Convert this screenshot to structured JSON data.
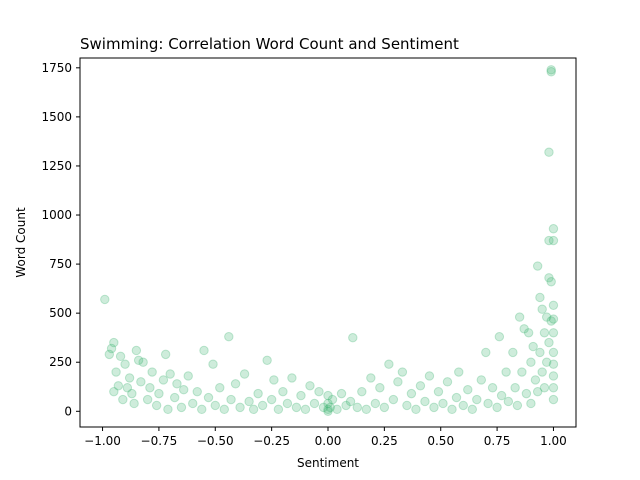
{
  "chart_data": {
    "type": "scatter",
    "title": "Swimming: Correlation Word Count and Sentiment",
    "xlabel": "Sentiment",
    "ylabel": "Word Count",
    "xlim": [
      -1.1,
      1.1
    ],
    "ylim": [
      -80,
      1800
    ],
    "xticks": [
      -1.0,
      -0.75,
      -0.5,
      -0.25,
      0.0,
      0.25,
      0.5,
      0.75,
      1.0
    ],
    "xtick_labels": [
      "−1.00",
      "−0.75",
      "−0.50",
      "−0.25",
      "0.00",
      "0.25",
      "0.50",
      "0.75",
      "1.00"
    ],
    "yticks": [
      0,
      250,
      500,
      750,
      1000,
      1250,
      1500,
      1750
    ],
    "ytick_labels": [
      "0",
      "250",
      "500",
      "750",
      "1000",
      "1250",
      "1500",
      "1750"
    ],
    "grid": false,
    "legend": "none",
    "marker_color": "#3cb371",
    "marker_alpha": 0.25,
    "series": [
      {
        "points": [
          [
            -0.99,
            570
          ],
          [
            -0.97,
            290
          ],
          [
            -0.96,
            320
          ],
          [
            -0.95,
            350
          ],
          [
            -0.95,
            100
          ],
          [
            -0.94,
            200
          ],
          [
            -0.93,
            130
          ],
          [
            -0.92,
            280
          ],
          [
            -0.91,
            60
          ],
          [
            -0.9,
            240
          ],
          [
            -0.89,
            120
          ],
          [
            -0.88,
            170
          ],
          [
            -0.87,
            90
          ],
          [
            -0.86,
            40
          ],
          [
            -0.85,
            310
          ],
          [
            -0.84,
            260
          ],
          [
            -0.83,
            150
          ],
          [
            -0.82,
            250
          ],
          [
            -0.8,
            60
          ],
          [
            -0.79,
            120
          ],
          [
            -0.78,
            200
          ],
          [
            -0.76,
            30
          ],
          [
            -0.75,
            90
          ],
          [
            -0.73,
            160
          ],
          [
            -0.72,
            290
          ],
          [
            -0.71,
            10
          ],
          [
            -0.7,
            190
          ],
          [
            -0.68,
            70
          ],
          [
            -0.67,
            140
          ],
          [
            -0.65,
            20
          ],
          [
            -0.64,
            110
          ],
          [
            -0.62,
            180
          ],
          [
            -0.6,
            40
          ],
          [
            -0.58,
            100
          ],
          [
            -0.56,
            10
          ],
          [
            -0.55,
            310
          ],
          [
            -0.53,
            70
          ],
          [
            -0.51,
            240
          ],
          [
            -0.5,
            30
          ],
          [
            -0.48,
            120
          ],
          [
            -0.46,
            10
          ],
          [
            -0.44,
            380
          ],
          [
            -0.43,
            60
          ],
          [
            -0.41,
            140
          ],
          [
            -0.39,
            20
          ],
          [
            -0.37,
            190
          ],
          [
            -0.35,
            50
          ],
          [
            -0.33,
            10
          ],
          [
            -0.31,
            90
          ],
          [
            -0.29,
            30
          ],
          [
            -0.27,
            260
          ],
          [
            -0.25,
            60
          ],
          [
            -0.24,
            160
          ],
          [
            -0.22,
            10
          ],
          [
            -0.2,
            100
          ],
          [
            -0.18,
            40
          ],
          [
            -0.16,
            170
          ],
          [
            -0.14,
            20
          ],
          [
            -0.12,
            80
          ],
          [
            -0.1,
            10
          ],
          [
            -0.08,
            130
          ],
          [
            -0.06,
            40
          ],
          [
            -0.04,
            100
          ],
          [
            -0.02,
            20
          ],
          [
            0.0,
            0
          ],
          [
            0.0,
            10
          ],
          [
            0.0,
            40
          ],
          [
            0.0,
            80
          ],
          [
            0.01,
            20
          ],
          [
            0.02,
            60
          ],
          [
            0.04,
            10
          ],
          [
            0.06,
            90
          ],
          [
            0.08,
            30
          ],
          [
            0.1,
            50
          ],
          [
            0.11,
            375
          ],
          [
            0.13,
            20
          ],
          [
            0.15,
            100
          ],
          [
            0.17,
            10
          ],
          [
            0.19,
            170
          ],
          [
            0.21,
            40
          ],
          [
            0.23,
            120
          ],
          [
            0.25,
            20
          ],
          [
            0.27,
            240
          ],
          [
            0.29,
            60
          ],
          [
            0.31,
            150
          ],
          [
            0.33,
            200
          ],
          [
            0.35,
            30
          ],
          [
            0.37,
            90
          ],
          [
            0.39,
            10
          ],
          [
            0.41,
            130
          ],
          [
            0.43,
            50
          ],
          [
            0.45,
            180
          ],
          [
            0.47,
            20
          ],
          [
            0.49,
            100
          ],
          [
            0.51,
            40
          ],
          [
            0.53,
            150
          ],
          [
            0.55,
            10
          ],
          [
            0.57,
            70
          ],
          [
            0.58,
            200
          ],
          [
            0.6,
            30
          ],
          [
            0.62,
            110
          ],
          [
            0.64,
            10
          ],
          [
            0.66,
            60
          ],
          [
            0.68,
            160
          ],
          [
            0.7,
            300
          ],
          [
            0.71,
            40
          ],
          [
            0.73,
            120
          ],
          [
            0.75,
            20
          ],
          [
            0.76,
            380
          ],
          [
            0.77,
            80
          ],
          [
            0.79,
            200
          ],
          [
            0.8,
            50
          ],
          [
            0.82,
            300
          ],
          [
            0.83,
            120
          ],
          [
            0.84,
            30
          ],
          [
            0.85,
            480
          ],
          [
            0.86,
            200
          ],
          [
            0.87,
            420
          ],
          [
            0.88,
            90
          ],
          [
            0.89,
            400
          ],
          [
            0.9,
            250
          ],
          [
            0.9,
            40
          ],
          [
            0.91,
            330
          ],
          [
            0.92,
            160
          ],
          [
            0.93,
            740
          ],
          [
            0.93,
            100
          ],
          [
            0.94,
            580
          ],
          [
            0.94,
            300
          ],
          [
            0.95,
            520
          ],
          [
            0.95,
            200
          ],
          [
            0.96,
            400
          ],
          [
            0.96,
            120
          ],
          [
            0.97,
            480
          ],
          [
            0.97,
            250
          ],
          [
            0.98,
            870
          ],
          [
            0.98,
            1320
          ],
          [
            0.98,
            680
          ],
          [
            0.98,
            350
          ],
          [
            0.99,
            660
          ],
          [
            0.99,
            460
          ],
          [
            0.99,
            1740
          ],
          [
            0.99,
            1730
          ],
          [
            1.0,
            930
          ],
          [
            1.0,
            870
          ],
          [
            1.0,
            540
          ],
          [
            1.0,
            470
          ],
          [
            1.0,
            400
          ],
          [
            1.0,
            300
          ],
          [
            1.0,
            240
          ],
          [
            1.0,
            180
          ],
          [
            1.0,
            120
          ],
          [
            1.0,
            60
          ]
        ]
      }
    ]
  }
}
